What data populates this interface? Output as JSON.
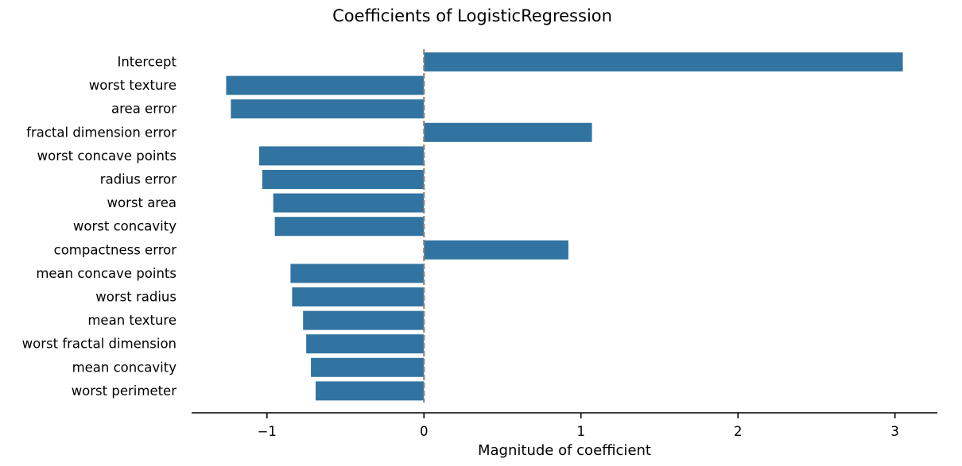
{
  "chart_data": {
    "type": "bar",
    "orientation": "horizontal",
    "title": "Coefficients of LogisticRegression",
    "xlabel": "Magnitude of coefficient",
    "ylabel": "",
    "categories": [
      "Intercept",
      "worst texture",
      "area error",
      "fractal dimension error",
      "worst concave points",
      "radius error",
      "worst area",
      "worst concavity",
      "compactness error",
      "mean concave points",
      "worst radius",
      "mean texture",
      "worst fractal dimension",
      "mean concavity",
      "worst perimeter"
    ],
    "values": [
      3.05,
      -1.26,
      -1.23,
      1.07,
      -1.05,
      -1.03,
      -0.96,
      -0.95,
      0.92,
      -0.85,
      -0.84,
      -0.77,
      -0.75,
      -0.72,
      -0.69
    ],
    "xlim": [
      -1.48,
      3.27
    ],
    "xticks": [
      -1,
      0,
      1,
      2,
      3
    ],
    "xtick_labels": [
      "−1",
      "0",
      "1",
      "2",
      "3"
    ],
    "reference_line_x": 0,
    "grid": false,
    "legend": "none",
    "colors": {
      "bar": "#3274a1",
      "reference_line": "#808080",
      "axis": "#000000"
    }
  }
}
